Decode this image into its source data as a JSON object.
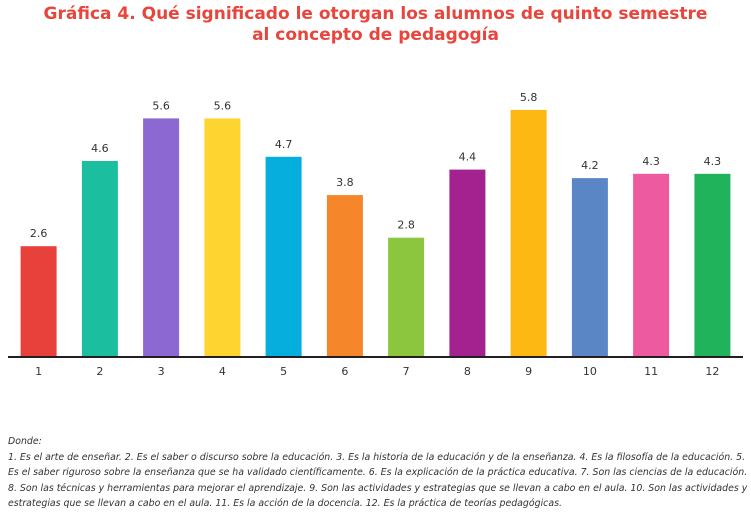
{
  "chart_data": {
    "type": "bar",
    "title_lines": [
      "Gráfica 4. Qué significado le otorgan los alumnos de quinto semestre",
      "al concepto de pedagogía"
    ],
    "categories": [
      "1",
      "2",
      "3",
      "4",
      "5",
      "6",
      "7",
      "8",
      "9",
      "10",
      "11",
      "12"
    ],
    "values": [
      2.6,
      4.6,
      5.6,
      5.6,
      4.7,
      3.8,
      2.8,
      4.4,
      5.8,
      4.2,
      4.3,
      4.3
    ],
    "value_labels": [
      "2.6",
      "4.6",
      "5.6",
      "5.6",
      "4.7",
      "3.8",
      "2.8",
      "4.4",
      "5.8",
      "4.2",
      "4.3",
      "4.3"
    ],
    "colors": [
      "#e8403a",
      "#1bbfa0",
      "#8c68d2",
      "#fdd430",
      "#06aedd",
      "#f5862a",
      "#8cc63f",
      "#a3228f",
      "#fdb814",
      "#5b86c6",
      "#ee5a9f",
      "#20b35c"
    ],
    "axis_color": "#231f20",
    "xlabel": "",
    "ylabel": "",
    "ylim": [
      0,
      6
    ],
    "grid": false,
    "legend": "none"
  },
  "notes": {
    "lines": [
      "Donde:",
      "1. Es el arte de enseñar. 2. Es el saber o discurso sobre la educación. 3. Es la historia de la educación y de la enseñanza. 4. Es la filosofía de la educación. 5.",
      "Es el saber riguroso sobre la enseñanza que se ha validado científicamente. 6. Es la explicación de la práctica educativa. 7. Son las ciencias de la educación.",
      "8. Son las técnicas y herramientas para mejorar el aprendizaje. 9. Son las actividades y estrategias que se llevan a cabo en el aula. 10. Son las actividades y",
      "estrategias que se llevan a cabo en el aula. 11. Es la acción de la docencia. 12. Es la práctica de teorías pedagógicas."
    ]
  }
}
